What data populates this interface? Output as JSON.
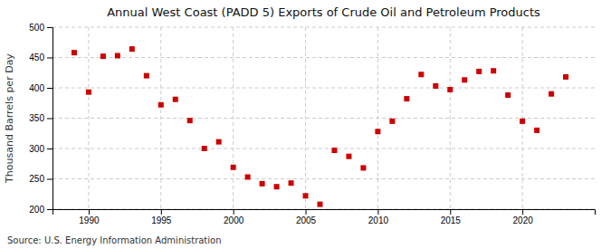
{
  "chart_data": {
    "type": "scatter",
    "title": "Annual West Coast (PADD 5) Exports of Crude Oil and Petroleum Products",
    "ylabel": "Thousand Barrels per Day",
    "annotations": [
      "Source: U.S. Energy Information Administration"
    ],
    "x": [
      1989,
      1990,
      1991,
      1992,
      1993,
      1994,
      1995,
      1996,
      1997,
      1998,
      1999,
      2000,
      2001,
      2002,
      2003,
      2004,
      2005,
      2006,
      2007,
      2008,
      2009,
      2010,
      2011,
      2012,
      2013,
      2014,
      2015,
      2016,
      2017,
      2018,
      2019,
      2020,
      2021,
      2022,
      2023
    ],
    "values": [
      458,
      393,
      452,
      453,
      464,
      420,
      372,
      381,
      346,
      300,
      311,
      269,
      253,
      242,
      237,
      243,
      222,
      208,
      297,
      287,
      268,
      328,
      345,
      382,
      422,
      403,
      397,
      413,
      427,
      428,
      388,
      345,
      330,
      390,
      418
    ],
    "color": "#cc0000",
    "marker": "square",
    "xlim": [
      1987.5,
      2025
    ],
    "xticks": [
      1990,
      1995,
      2000,
      2005,
      2010,
      2015,
      2020
    ],
    "ylim": [
      200,
      500
    ],
    "yticks": [
      200,
      250,
      300,
      350,
      400,
      450,
      500
    ],
    "grid": true
  }
}
